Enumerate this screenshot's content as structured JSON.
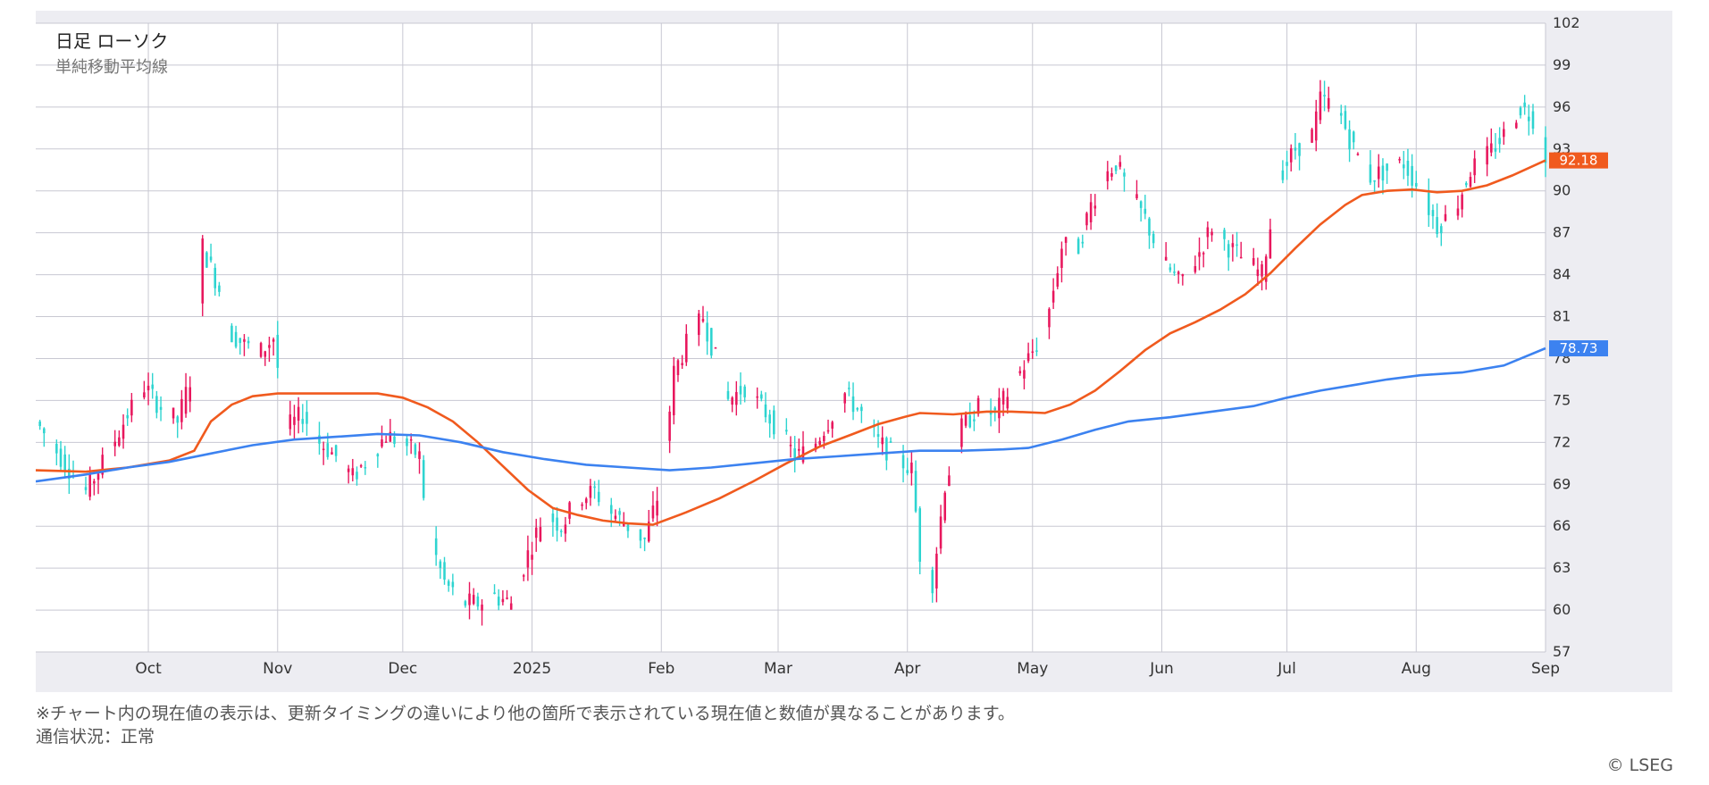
{
  "chart_title": "日足 ローソク",
  "chart_subtitle": "単純移動平均線",
  "footer": {
    "note": "※チャート内の現在値の表示は、更新タイミングの違いにより他の箇所で表示されている現在値と数値が異なることがあります。",
    "status": "通信状況：正常",
    "credit": "© LSEG"
  },
  "colors": {
    "up": "#e8175d",
    "down": "#2ed4d0",
    "ma_short": "#f05a1e",
    "ma_long": "#3c82f0",
    "grid": "#c8c8d2",
    "background": "#ededf2",
    "plot": "#ffffff"
  },
  "chart_data": {
    "type": "candlestick",
    "y_ticks": [
      57,
      60,
      63,
      66,
      69,
      72,
      75,
      78,
      81,
      84,
      87,
      90,
      93,
      96,
      99,
      102
    ],
    "ylim": [
      57,
      102
    ],
    "x_labels": [
      {
        "label": "Oct",
        "day": 15
      },
      {
        "label": "Nov",
        "day": 46
      },
      {
        "label": "Dec",
        "day": 76
      },
      {
        "label": "2025",
        "day": 107
      },
      {
        "label": "Feb",
        "day": 138
      },
      {
        "label": "Mar",
        "day": 166
      },
      {
        "label": "Apr",
        "day": 197
      },
      {
        "label": "May",
        "day": 227
      },
      {
        "label": "Jun",
        "day": 258
      },
      {
        "label": "Jul",
        "day": 288
      },
      {
        "label": "Aug",
        "day": 319
      },
      {
        "label": "Sep",
        "day": 350
      }
    ],
    "x_range": [
      -12,
      350
    ],
    "price_points": [
      [
        -12,
        73.5
      ],
      [
        -5,
        70.5
      ],
      [
        0,
        68.5
      ],
      [
        5,
        71
      ],
      [
        10,
        74
      ],
      [
        14,
        76
      ],
      [
        18,
        74.5
      ],
      [
        22,
        73.5
      ],
      [
        26,
        77.5
      ],
      [
        28,
        86
      ],
      [
        32,
        83
      ],
      [
        34,
        80
      ],
      [
        38,
        79
      ],
      [
        42,
        78.5
      ],
      [
        45,
        79.5
      ],
      [
        48,
        73
      ],
      [
        52,
        74
      ],
      [
        56,
        72
      ],
      [
        60,
        71
      ],
      [
        64,
        69.5
      ],
      [
        68,
        71
      ],
      [
        72,
        72.5
      ],
      [
        76,
        72
      ],
      [
        80,
        71
      ],
      [
        82,
        65.5
      ],
      [
        86,
        62
      ],
      [
        90,
        60.5
      ],
      [
        94,
        60.5
      ],
      [
        98,
        61
      ],
      [
        102,
        60.5
      ],
      [
        106,
        64
      ],
      [
        110,
        67
      ],
      [
        114,
        66
      ],
      [
        118,
        68
      ],
      [
        122,
        68.5
      ],
      [
        126,
        67
      ],
      [
        130,
        66
      ],
      [
        134,
        65
      ],
      [
        138,
        69
      ],
      [
        141,
        77
      ],
      [
        144,
        79
      ],
      [
        148,
        81
      ],
      [
        151,
        78
      ],
      [
        154,
        75
      ],
      [
        158,
        76
      ],
      [
        162,
        74.5
      ],
      [
        166,
        73
      ],
      [
        170,
        71
      ],
      [
        174,
        71.5
      ],
      [
        178,
        73.5
      ],
      [
        182,
        75.5
      ],
      [
        186,
        74
      ],
      [
        190,
        72
      ],
      [
        194,
        71
      ],
      [
        198,
        70
      ],
      [
        200,
        64
      ],
      [
        203,
        62
      ],
      [
        206,
        69
      ],
      [
        210,
        73
      ],
      [
        214,
        74.5
      ],
      [
        218,
        74
      ],
      [
        222,
        76
      ],
      [
        226,
        78
      ],
      [
        230,
        80
      ],
      [
        234,
        86
      ],
      [
        238,
        86
      ],
      [
        241,
        89
      ],
      [
        244,
        91
      ],
      [
        247,
        92
      ],
      [
        250,
        90
      ],
      [
        254,
        88
      ],
      [
        258,
        85
      ],
      [
        262,
        83.5
      ],
      [
        266,
        85
      ],
      [
        270,
        87.5
      ],
      [
        274,
        86
      ],
      [
        278,
        85
      ],
      [
        282,
        84
      ],
      [
        286,
        91
      ],
      [
        290,
        93
      ],
      [
        294,
        94
      ],
      [
        296,
        96.5
      ],
      [
        300,
        96
      ],
      [
        304,
        93
      ],
      [
        308,
        91
      ],
      [
        312,
        91.5
      ],
      [
        316,
        92
      ],
      [
        320,
        90
      ],
      [
        324,
        87.5
      ],
      [
        328,
        88.5
      ],
      [
        332,
        91.5
      ],
      [
        336,
        92.5
      ],
      [
        340,
        94
      ],
      [
        344,
        96
      ],
      [
        348,
        95
      ],
      [
        350,
        92.5
      ]
    ],
    "series": [
      {
        "name": "",
        "color": "#f05a1e",
        "current_value": "92.18",
        "points": [
          [
            -12,
            70.0
          ],
          [
            0,
            69.9
          ],
          [
            10,
            70.2
          ],
          [
            20,
            70.7
          ],
          [
            26,
            71.4
          ],
          [
            30,
            73.5
          ],
          [
            35,
            74.7
          ],
          [
            40,
            75.3
          ],
          [
            46,
            75.5
          ],
          [
            60,
            75.5
          ],
          [
            70,
            75.5
          ],
          [
            76,
            75.2
          ],
          [
            82,
            74.5
          ],
          [
            88,
            73.5
          ],
          [
            94,
            72.0
          ],
          [
            100,
            70.3
          ],
          [
            106,
            68.6
          ],
          [
            112,
            67.3
          ],
          [
            118,
            66.8
          ],
          [
            124,
            66.4
          ],
          [
            130,
            66.2
          ],
          [
            136,
            66.1
          ],
          [
            144,
            67.0
          ],
          [
            152,
            68.0
          ],
          [
            160,
            69.2
          ],
          [
            168,
            70.5
          ],
          [
            176,
            71.7
          ],
          [
            184,
            72.6
          ],
          [
            190,
            73.3
          ],
          [
            196,
            73.8
          ],
          [
            200,
            74.1
          ],
          [
            208,
            74.0
          ],
          [
            216,
            74.2
          ],
          [
            222,
            74.2
          ],
          [
            230,
            74.1
          ],
          [
            236,
            74.7
          ],
          [
            242,
            75.7
          ],
          [
            248,
            77.1
          ],
          [
            254,
            78.6
          ],
          [
            260,
            79.8
          ],
          [
            266,
            80.6
          ],
          [
            272,
            81.5
          ],
          [
            278,
            82.6
          ],
          [
            284,
            84.1
          ],
          [
            290,
            85.9
          ],
          [
            296,
            87.6
          ],
          [
            302,
            89.0
          ],
          [
            306,
            89.7
          ],
          [
            312,
            90.0
          ],
          [
            318,
            90.1
          ],
          [
            324,
            89.9
          ],
          [
            330,
            90.0
          ],
          [
            336,
            90.4
          ],
          [
            342,
            91.1
          ],
          [
            350,
            92.18
          ]
        ]
      },
      {
        "name": "",
        "color": "#3c82f0",
        "current_value": "78.73",
        "points": [
          [
            -12,
            69.2
          ],
          [
            0,
            69.7
          ],
          [
            10,
            70.2
          ],
          [
            20,
            70.6
          ],
          [
            30,
            71.2
          ],
          [
            40,
            71.8
          ],
          [
            50,
            72.2
          ],
          [
            60,
            72.4
          ],
          [
            70,
            72.6
          ],
          [
            80,
            72.5
          ],
          [
            90,
            72.0
          ],
          [
            100,
            71.3
          ],
          [
            110,
            70.8
          ],
          [
            120,
            70.4
          ],
          [
            130,
            70.2
          ],
          [
            140,
            70.0
          ],
          [
            150,
            70.2
          ],
          [
            160,
            70.5
          ],
          [
            170,
            70.8
          ],
          [
            180,
            71.0
          ],
          [
            190,
            71.2
          ],
          [
            200,
            71.4
          ],
          [
            210,
            71.4
          ],
          [
            220,
            71.5
          ],
          [
            226,
            71.6
          ],
          [
            234,
            72.2
          ],
          [
            242,
            72.9
          ],
          [
            250,
            73.5
          ],
          [
            260,
            73.8
          ],
          [
            270,
            74.2
          ],
          [
            280,
            74.6
          ],
          [
            288,
            75.2
          ],
          [
            296,
            75.7
          ],
          [
            304,
            76.1
          ],
          [
            312,
            76.5
          ],
          [
            320,
            76.8
          ],
          [
            330,
            77.0
          ],
          [
            340,
            77.5
          ],
          [
            350,
            78.73
          ]
        ]
      }
    ]
  }
}
